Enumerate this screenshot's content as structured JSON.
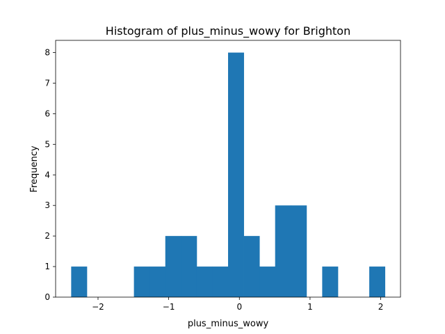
{
  "chart_data": {
    "type": "bar",
    "title": "Histogram of plus_minus_wowy for Brighton",
    "xlabel": "plus_minus_wowy",
    "ylabel": "Frequency",
    "xlim": [
      -2.6,
      2.28
    ],
    "ylim": [
      0,
      8.4
    ],
    "xticks": [
      {
        "value": -2,
        "label": "−2"
      },
      {
        "value": -1,
        "label": "−1"
      },
      {
        "value": 0,
        "label": "0"
      },
      {
        "value": 1,
        "label": "1"
      },
      {
        "value": 2,
        "label": "2"
      }
    ],
    "yticks": [
      0,
      1,
      2,
      3,
      4,
      5,
      6,
      7,
      8
    ],
    "bin_edges": [
      -2.38,
      -2.158,
      -1.936,
      -1.714,
      -1.492,
      -1.27,
      -1.048,
      -0.826,
      -0.604,
      -0.382,
      -0.16,
      0.062,
      0.284,
      0.506,
      0.728,
      0.95,
      1.172,
      1.394,
      1.616,
      1.838,
      2.06
    ],
    "counts": [
      1,
      0,
      0,
      0,
      1,
      1,
      2,
      2,
      1,
      1,
      8,
      2,
      1,
      3,
      3,
      0,
      1,
      0,
      0,
      1
    ],
    "bar_color": "#1f77b4",
    "grid": false
  }
}
